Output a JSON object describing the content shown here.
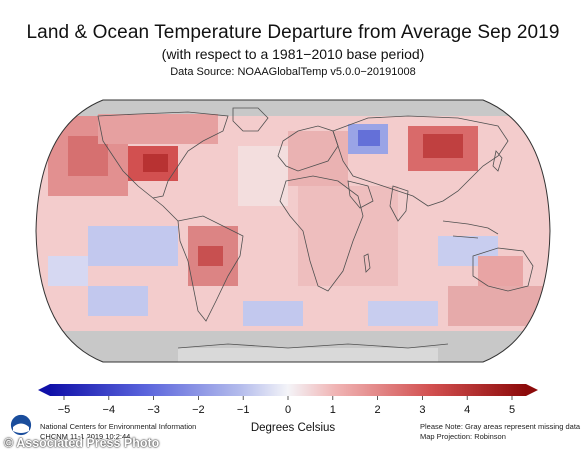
{
  "title": "Land & Ocean Temperature Departure from Average Sep 2019",
  "subtitle": "(with respect to a 1981−2010 base period)",
  "source": "Data Source: NOAAGlobalTemp v5.0.0−20191008",
  "colorbar": {
    "ticks": [
      "−5",
      "−4",
      "−3",
      "−2",
      "−1",
      "0",
      "1",
      "2",
      "3",
      "4",
      "5"
    ],
    "label": "Degrees Celsius",
    "min": -5,
    "max": 5
  },
  "credits": {
    "org": "National Centers for Environmental Information",
    "id": "CHCNM 11-1 2019 10:2:44",
    "note": "Please Note: Gray areas represent missing data",
    "projection": "Map Projection: Robinson"
  },
  "logo_text": "NOAA",
  "watermark": "© Associated Press Photo",
  "colors": {
    "cold_max": "#1010a8",
    "cold": "#5a64dc",
    "cool": "#b4bcec",
    "neutral": "#f4f4f8",
    "warm": "#f0b4b4",
    "hot": "#d25050",
    "hot_max": "#8c0a0a",
    "missing": "#c8c8c8",
    "land_outline": "#505050"
  }
}
